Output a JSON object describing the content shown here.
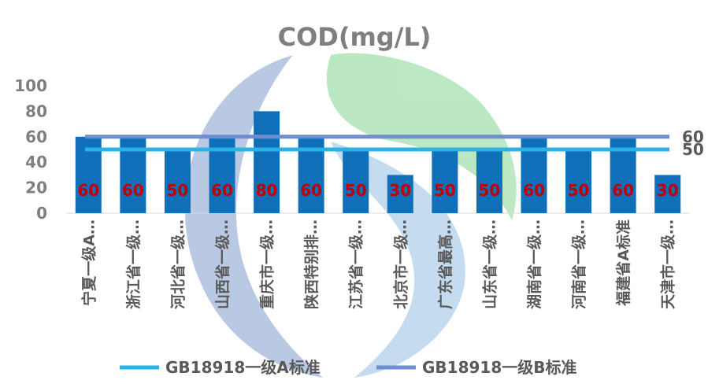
{
  "chart_data": {
    "type": "bar",
    "title": "COD(mg/L)",
    "categories": [
      "宁夏一级A…",
      "浙江省一级…",
      "河北省一级…",
      "山西省一级…",
      "重庆市一级…",
      "陕西特别排…",
      "江苏省一级…",
      "北京市一级…",
      "广东省最高…",
      "山东省一级…",
      "湖南省一级…",
      "河南省一级…",
      "福建省A标准",
      "天津市一级…"
    ],
    "values": [
      60,
      60,
      50,
      60,
      80,
      60,
      50,
      30,
      50,
      50,
      60,
      50,
      60,
      30
    ],
    "data_labels": [
      "60",
      "60",
      "50",
      "60",
      "80",
      "60",
      "50",
      "30",
      "50",
      "50",
      "60",
      "50",
      "60",
      "30"
    ],
    "ylim": [
      0,
      100
    ],
    "yticks": [
      0,
      20,
      40,
      60,
      80,
      100
    ],
    "ytick_labels": [
      "0",
      "20",
      "40",
      "60",
      "80",
      "100"
    ],
    "xlabel": "",
    "ylabel": "",
    "bar_color": "#0f6fb8",
    "reference_lines": [
      {
        "name": "GB18918一级A标准",
        "value": 50,
        "label": "50",
        "color": "#29b2e6"
      },
      {
        "name": "GB18918一级B标准",
        "value": 60,
        "label": "60",
        "color": "#6e8ed0"
      }
    ],
    "legend_position": "bottom",
    "grid": false
  }
}
